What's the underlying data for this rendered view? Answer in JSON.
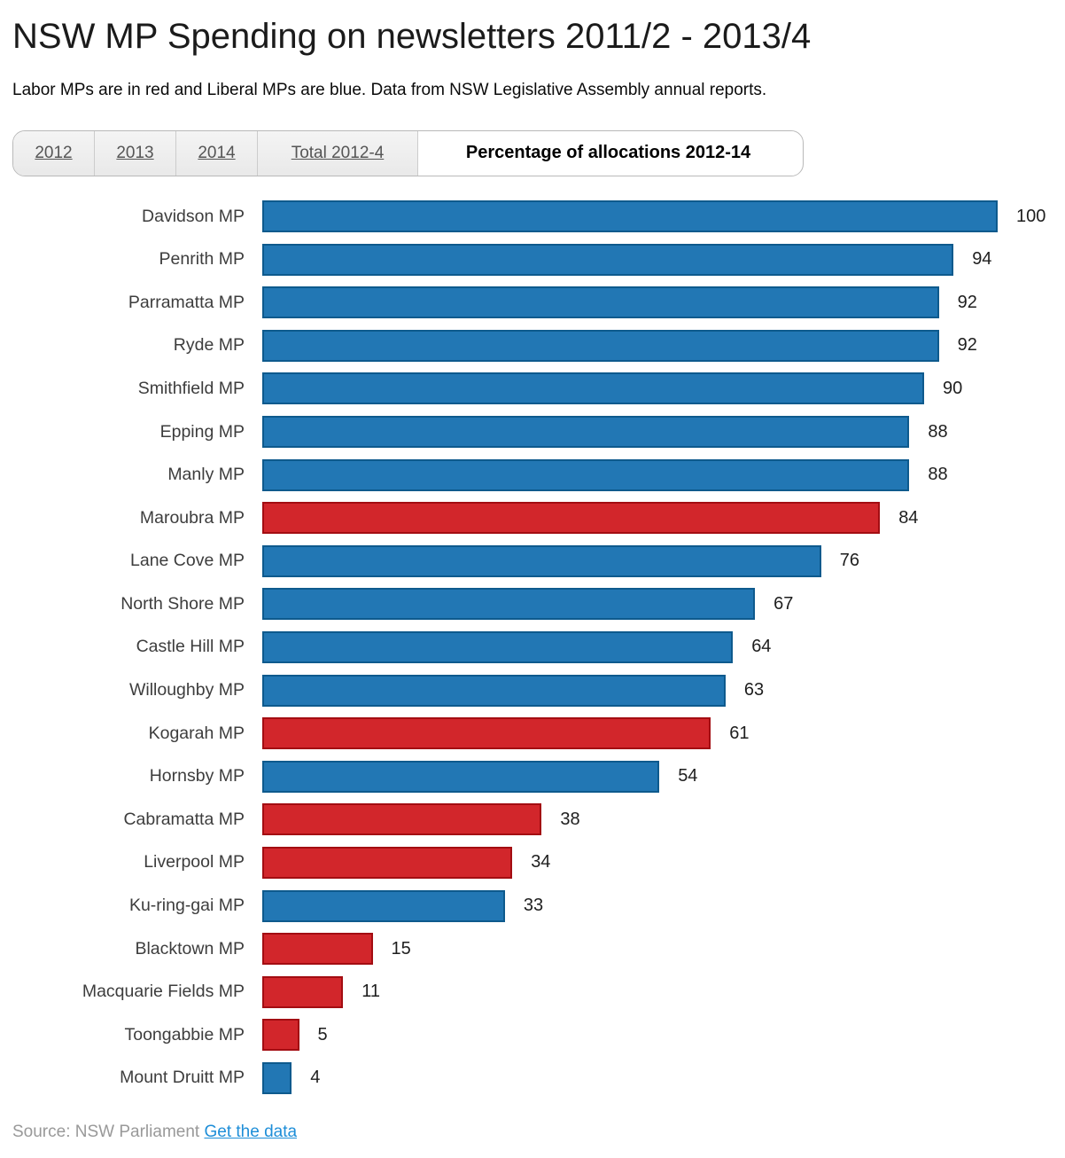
{
  "header": {
    "title": "NSW MP Spending on newsletters 2011/2 - 2013/4",
    "subtitle": "Labor MPs are in red and Liberal MPs are blue. Data from NSW Legislative Assembly annual reports."
  },
  "tabs": [
    {
      "label": "2012",
      "active": false
    },
    {
      "label": "2013",
      "active": false
    },
    {
      "label": "2014",
      "active": false
    },
    {
      "label": "Total 2012-4",
      "active": false
    },
    {
      "label": "Percentage of allocations 2012-14",
      "active": true
    }
  ],
  "chart_data": {
    "type": "bar",
    "orientation": "horizontal",
    "title": "NSW MP Spending on newsletters 2011/2 - 2013/4",
    "series_label": "Percentage of allocations 2012-14",
    "xlim": [
      0,
      100
    ],
    "grid": false,
    "value_labels": true,
    "categories": [
      "Davidson MP",
      "Penrith MP",
      "Parramatta MP",
      "Ryde MP",
      "Smithfield MP",
      "Epping MP",
      "Manly MP",
      "Maroubra MP",
      "Lane Cove MP",
      "North Shore MP",
      "Castle Hill MP",
      "Willoughby MP",
      "Kogarah MP",
      "Hornsby MP",
      "Cabramatta MP",
      "Liverpool MP",
      "Ku-ring-gai MP",
      "Blacktown MP",
      "Macquarie Fields MP",
      "Toongabbie MP",
      "Mount Druitt MP"
    ],
    "values": [
      100,
      94,
      92,
      92,
      90,
      88,
      88,
      84,
      76,
      67,
      64,
      63,
      61,
      54,
      38,
      34,
      33,
      15,
      11,
      5,
      4
    ],
    "parties": [
      "liberal",
      "liberal",
      "liberal",
      "liberal",
      "liberal",
      "liberal",
      "liberal",
      "labor",
      "liberal",
      "liberal",
      "liberal",
      "liberal",
      "labor",
      "liberal",
      "labor",
      "labor",
      "liberal",
      "labor",
      "labor",
      "labor",
      "liberal"
    ],
    "party_colors": {
      "labor": "#d2262b",
      "liberal": "#2277b4"
    },
    "party_border_colors": {
      "labor": "#a30d12",
      "liberal": "#0e5a8d"
    }
  },
  "footer": {
    "source_text": "Source: NSW Parliament",
    "link_label": "Get the data"
  }
}
